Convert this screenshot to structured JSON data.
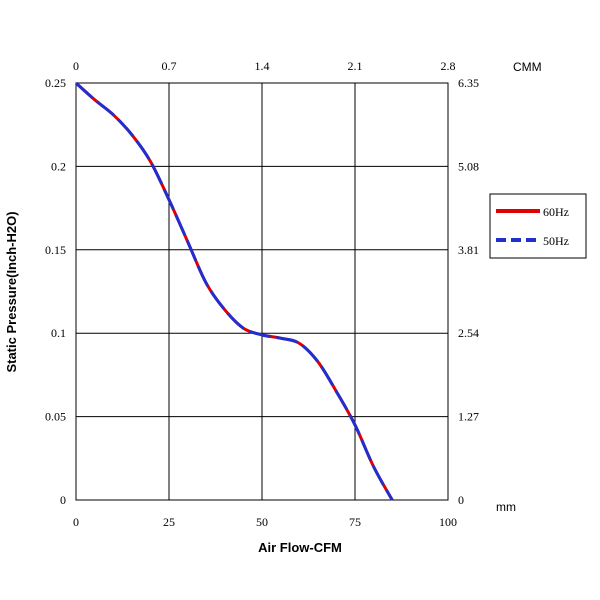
{
  "chart_data": {
    "type": "line",
    "xlabel": "Air Flow-CFM",
    "ylabel": "Static Pressure(Inch-H2O)",
    "x_ticks": [
      "0",
      "25",
      "50",
      "75",
      "100"
    ],
    "y_ticks": [
      "0",
      "0.05",
      "0.1",
      "0.15",
      "0.2",
      "0.25"
    ],
    "xlim": [
      0,
      100
    ],
    "ylim": [
      0,
      0.25
    ],
    "top_axis": {
      "label": "CMM",
      "ticks": [
        "0",
        "0.7",
        "1.4",
        "2.1",
        "2.8"
      ]
    },
    "right_axis": {
      "label": "mm",
      "ticks": [
        "0",
        "1.27",
        "2.54",
        "3.81",
        "5.08",
        "6.35"
      ]
    },
    "grid": true,
    "legend_position": "right",
    "series": [
      {
        "name": "60Hz",
        "color": "#e00000",
        "style": "solid",
        "x": [
          0,
          5,
          10,
          15,
          20,
          25,
          30,
          35,
          40,
          45,
          50,
          55,
          60,
          65,
          70,
          75,
          80,
          85
        ],
        "y": [
          0.25,
          0.24,
          0.231,
          0.219,
          0.203,
          0.18,
          0.155,
          0.13,
          0.114,
          0.103,
          0.099,
          0.097,
          0.094,
          0.083,
          0.065,
          0.045,
          0.02,
          0.0
        ]
      },
      {
        "name": "50Hz",
        "color": "#1f2fd0",
        "style": "dashed",
        "x": [
          0,
          5,
          10,
          15,
          20,
          25,
          30,
          35,
          40,
          45,
          50,
          55,
          60,
          65,
          70,
          75,
          80,
          85
        ],
        "y": [
          0.25,
          0.24,
          0.231,
          0.219,
          0.203,
          0.18,
          0.155,
          0.13,
          0.114,
          0.103,
          0.099,
          0.097,
          0.094,
          0.083,
          0.065,
          0.045,
          0.02,
          0.0
        ]
      }
    ]
  }
}
